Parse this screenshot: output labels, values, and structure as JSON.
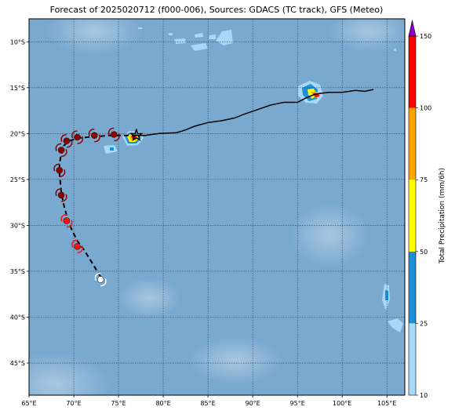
{
  "title": "Forecast of 2025020712 (f000-006), Sources: GDACS (TC track), GFS (Meteo)",
  "map": {
    "lon_range": [
      65,
      107
    ],
    "lat_range": [
      -48.5,
      -7.5
    ],
    "lon_ticks": [
      {
        "value": 65,
        "label": "65°E"
      },
      {
        "value": 70,
        "label": "70°E"
      },
      {
        "value": 75,
        "label": "75°E"
      },
      {
        "value": 80,
        "label": "80°E"
      },
      {
        "value": 85,
        "label": "85°E"
      },
      {
        "value": 90,
        "label": "90°E"
      },
      {
        "value": 95,
        "label": "95°E"
      },
      {
        "value": 100,
        "label": "100°E"
      },
      {
        "value": 105,
        "label": "105°E"
      }
    ],
    "lat_ticks": [
      {
        "value": -10,
        "label": "10°S"
      },
      {
        "value": -15,
        "label": "15°S"
      },
      {
        "value": -20,
        "label": "20°S"
      },
      {
        "value": -25,
        "label": "25°S"
      },
      {
        "value": -30,
        "label": "30°S"
      },
      {
        "value": -35,
        "label": "35°S"
      },
      {
        "value": -40,
        "label": "40°S"
      },
      {
        "value": -45,
        "label": "45°S"
      }
    ],
    "grid": true,
    "ocean_color": "#7aa9d0"
  },
  "track": {
    "past": [
      [
        103.5,
        -15.2
      ],
      [
        102.5,
        -15.4
      ],
      [
        101.5,
        -15.3
      ],
      [
        100,
        -15.5
      ],
      [
        98.5,
        -15.5
      ],
      [
        97,
        -15.7
      ],
      [
        96,
        -16.1
      ],
      [
        95,
        -16.6
      ],
      [
        93.5,
        -16.6
      ],
      [
        92,
        -16.9
      ],
      [
        90.5,
        -17.4
      ],
      [
        89,
        -17.9
      ],
      [
        88,
        -18.3
      ],
      [
        86.5,
        -18.6
      ],
      [
        85,
        -18.8
      ],
      [
        83.5,
        -19.2
      ],
      [
        82.5,
        -19.6
      ],
      [
        81.5,
        -19.9
      ],
      [
        79.5,
        -20.0
      ],
      [
        78,
        -20.2
      ],
      [
        77,
        -20.2
      ]
    ],
    "forecast": [
      [
        77,
        -20.2
      ],
      [
        75.5,
        -20.2
      ],
      [
        74,
        -20.2
      ],
      [
        72.8,
        -20.3
      ],
      [
        71.5,
        -20.4
      ],
      [
        70.5,
        -20.5
      ],
      [
        69.5,
        -20.8
      ],
      [
        68.9,
        -21.3
      ],
      [
        68.6,
        -22.2
      ],
      [
        68.4,
        -23.3
      ],
      [
        68.4,
        -24.3
      ],
      [
        68.5,
        -25.3
      ],
      [
        68.6,
        -26.4
      ],
      [
        68.9,
        -27.8
      ],
      [
        69.3,
        -29.3
      ],
      [
        69.8,
        -30.5
      ],
      [
        70.4,
        -31.7
      ],
      [
        71.1,
        -32.6
      ],
      [
        72,
        -34
      ],
      [
        73,
        -35.6
      ],
      [
        73.1,
        -36.2
      ]
    ],
    "current_position": [
      77,
      -20.2
    ]
  },
  "storm_symbols": [
    {
      "lon": 74.5,
      "lat": -20.1,
      "color": "#8b0000"
    },
    {
      "lon": 72.3,
      "lat": -20.2,
      "color": "#8b0000"
    },
    {
      "lon": 70.4,
      "lat": -20.4,
      "color": "#8b0000"
    },
    {
      "lon": 69.2,
      "lat": -20.8,
      "color": "#8b0000"
    },
    {
      "lon": 68.6,
      "lat": -21.8,
      "color": "#8b0000"
    },
    {
      "lon": 68.4,
      "lat": -24.0,
      "color": "#8b0000"
    },
    {
      "lon": 68.6,
      "lat": -26.7,
      "color": "#8b0000"
    },
    {
      "lon": 69.2,
      "lat": -29.5,
      "color": "#ff1010"
    },
    {
      "lon": 70.4,
      "lat": -32.3,
      "color": "#ff1010"
    },
    {
      "lon": 73.0,
      "lat": -35.9,
      "color": "#ffffff"
    }
  ],
  "colorbar": {
    "label": "Total Precipitation (mm/6h)",
    "ticks": [
      "10",
      "25",
      "50",
      "75",
      "100",
      "150"
    ],
    "colors": [
      "#a8d8f8",
      "#1e90d8",
      "#ffff00",
      "#ffa500",
      "#ff0000"
    ],
    "extend_color": "#8a00d0"
  }
}
